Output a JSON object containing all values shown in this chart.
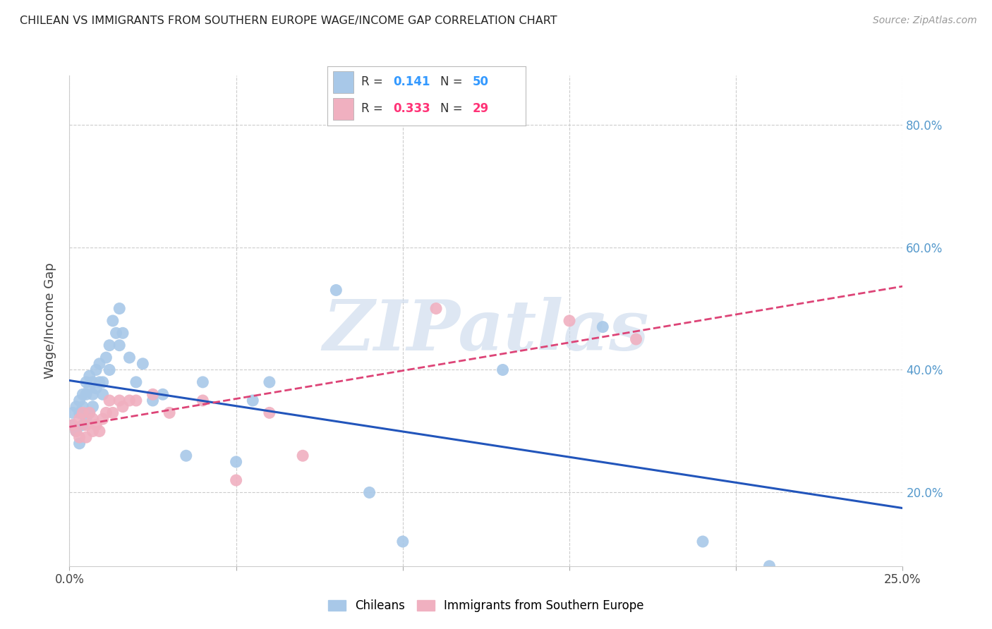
{
  "title": "CHILEAN VS IMMIGRANTS FROM SOUTHERN EUROPE WAGE/INCOME GAP CORRELATION CHART",
  "source": "Source: ZipAtlas.com",
  "ylabel": "Wage/Income Gap",
  "xlim": [
    0.0,
    0.25
  ],
  "ylim": [
    0.08,
    0.88
  ],
  "ytick_positions": [
    0.2,
    0.4,
    0.6,
    0.8
  ],
  "ytick_labels": [
    "20.0%",
    "40.0%",
    "60.0%",
    "80.0%"
  ],
  "chileans_x": [
    0.001,
    0.001,
    0.002,
    0.002,
    0.003,
    0.003,
    0.003,
    0.004,
    0.004,
    0.004,
    0.005,
    0.005,
    0.005,
    0.006,
    0.006,
    0.006,
    0.007,
    0.007,
    0.007,
    0.008,
    0.008,
    0.009,
    0.009,
    0.01,
    0.01,
    0.011,
    0.012,
    0.012,
    0.013,
    0.014,
    0.015,
    0.015,
    0.016,
    0.018,
    0.02,
    0.022,
    0.025,
    0.028,
    0.035,
    0.04,
    0.05,
    0.055,
    0.06,
    0.08,
    0.09,
    0.1,
    0.13,
    0.16,
    0.19,
    0.21
  ],
  "chileans_y": [
    0.33,
    0.31,
    0.34,
    0.3,
    0.35,
    0.33,
    0.28,
    0.36,
    0.34,
    0.31,
    0.38,
    0.36,
    0.32,
    0.39,
    0.37,
    0.33,
    0.38,
    0.36,
    0.34,
    0.4,
    0.37,
    0.41,
    0.38,
    0.38,
    0.36,
    0.42,
    0.44,
    0.4,
    0.48,
    0.46,
    0.5,
    0.44,
    0.46,
    0.42,
    0.38,
    0.41,
    0.35,
    0.36,
    0.26,
    0.38,
    0.25,
    0.35,
    0.38,
    0.53,
    0.2,
    0.12,
    0.4,
    0.47,
    0.12,
    0.08
  ],
  "immigrants_x": [
    0.001,
    0.002,
    0.003,
    0.003,
    0.004,
    0.005,
    0.005,
    0.006,
    0.007,
    0.007,
    0.008,
    0.009,
    0.01,
    0.011,
    0.012,
    0.013,
    0.015,
    0.016,
    0.018,
    0.02,
    0.025,
    0.03,
    0.04,
    0.05,
    0.06,
    0.07,
    0.11,
    0.15,
    0.17
  ],
  "immigrants_y": [
    0.31,
    0.3,
    0.32,
    0.29,
    0.33,
    0.31,
    0.29,
    0.33,
    0.32,
    0.3,
    0.31,
    0.3,
    0.32,
    0.33,
    0.35,
    0.33,
    0.35,
    0.34,
    0.35,
    0.35,
    0.36,
    0.33,
    0.35,
    0.22,
    0.33,
    0.26,
    0.5,
    0.48,
    0.45
  ],
  "blue_color": "#a8c8e8",
  "pink_color": "#f0b0c0",
  "blue_line_color": "#2255bb",
  "pink_line_color": "#dd4477",
  "blue_legend_color": "#3399ff",
  "pink_legend_color": "#ff3377",
  "watermark": "ZIPatlas",
  "watermark_color": "#c8d8ec",
  "background_color": "#ffffff",
  "grid_color": "#cccccc"
}
